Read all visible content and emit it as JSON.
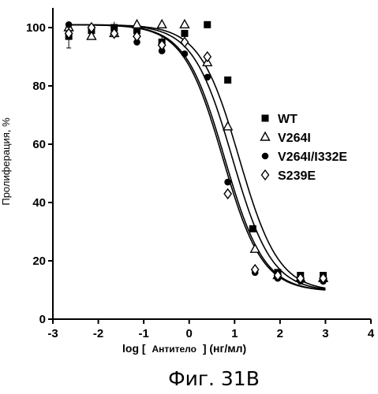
{
  "chart_data": {
    "type": "scatter",
    "ylabel": "Пролиферация, %",
    "xlabel_parts": [
      "log [",
      "Антитело",
      "] (нг/мл)"
    ],
    "caption": "Фиг. 31B",
    "xlim": [
      -3,
      4
    ],
    "ylim": [
      0,
      100
    ],
    "x_ticks": [
      -3,
      -2,
      -1,
      0,
      1,
      2,
      3,
      4
    ],
    "y_ticks": [
      0,
      20,
      40,
      60,
      80,
      100
    ],
    "legend_position": "right",
    "series": [
      {
        "name": "WT",
        "marker": "square",
        "x": [
          -2.65,
          -2.15,
          -1.65,
          -1.15,
          -0.6,
          -0.1,
          0.4,
          0.85,
          1.4,
          1.95,
          2.45,
          2.95
        ],
        "y": [
          97,
          99,
          100,
          99,
          95,
          98,
          101,
          82,
          31,
          16,
          15,
          15
        ],
        "error": [
          4,
          2,
          2,
          2,
          2,
          0,
          0,
          0,
          0,
          0,
          0,
          0
        ]
      },
      {
        "name": "V264I",
        "marker": "triangle-open",
        "x": [
          -2.65,
          -2.15,
          -1.65,
          -1.15,
          -0.6,
          -0.1,
          0.4,
          0.85,
          1.45,
          1.95,
          2.45,
          2.95
        ],
        "y": [
          100,
          97,
          98,
          101,
          101,
          101,
          88,
          66,
          24,
          15,
          14,
          14
        ]
      },
      {
        "name": "V264I/I332E",
        "marker": "circle",
        "x": [
          -2.65,
          -2.15,
          -1.65,
          -1.15,
          -0.6,
          -0.1,
          0.4,
          0.85,
          1.45,
          1.95,
          2.45,
          2.95
        ],
        "y": [
          101,
          100,
          99,
          95,
          92,
          91,
          83,
          47,
          16,
          14,
          13,
          13
        ]
      },
      {
        "name": "S239E",
        "marker": "diamond-open",
        "x": [
          -2.65,
          -2.15,
          -1.65,
          -1.15,
          -0.6,
          -0.1,
          0.4,
          0.85,
          1.45,
          1.95,
          2.45,
          2.95
        ],
        "y": [
          98,
          100,
          98,
          97,
          94,
          95,
          90,
          43,
          17,
          15,
          14,
          14
        ]
      }
    ],
    "curves": [
      {
        "top": 101,
        "bottom": 9.5,
        "logEC50": 1.1,
        "hill": 1.0
      },
      {
        "top": 101,
        "bottom": 9.5,
        "logEC50": 0.95,
        "hill": 1.0
      },
      {
        "top": 101,
        "bottom": 9.5,
        "logEC50": 0.78,
        "hill": 1.0
      },
      {
        "top": 101,
        "bottom": 9.5,
        "logEC50": 0.74,
        "hill": 1.0
      }
    ]
  }
}
